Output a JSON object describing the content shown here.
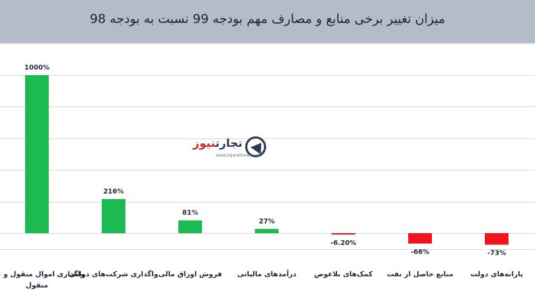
{
  "title": "میزان تغییر برخی منابع و مصارف مهم بودجه 99 نسبت به بودجه 98",
  "logo": {
    "name_part1": "تجارت",
    "name_part2": "نیوز",
    "url": "www.tejaratnews.com"
  },
  "colors": {
    "positive": "#1cba51",
    "negative": "#f2141a",
    "header": "#b4bcc9",
    "grid": "#d6d8dc"
  },
  "chart_data": {
    "type": "bar",
    "title": "میزان تغییر برخی منابع و مصارف مهم بودجه 99 نسبت به بودجه 98",
    "categories": [
      "واگذاری اموال منقول و غیر منقول",
      "واگذاری شرکت‌های دولتی",
      "فروش اوراق مالی",
      "درآمدهای مالیاتی",
      "کمک‌های بلاعوض",
      "منابع حاصل از نفت",
      "یارانه‌های دولت"
    ],
    "values": [
      1000,
      216,
      81,
      27,
      -6.2,
      -66,
      -73
    ],
    "value_labels": [
      "1000%",
      "216%",
      "81%",
      "27%",
      "-6.20%",
      "-66%",
      "-73%"
    ],
    "ylim": [
      -100,
      1000
    ],
    "grid": true,
    "gridlines": [
      -100,
      0,
      200,
      400,
      600,
      800,
      1000
    ]
  }
}
